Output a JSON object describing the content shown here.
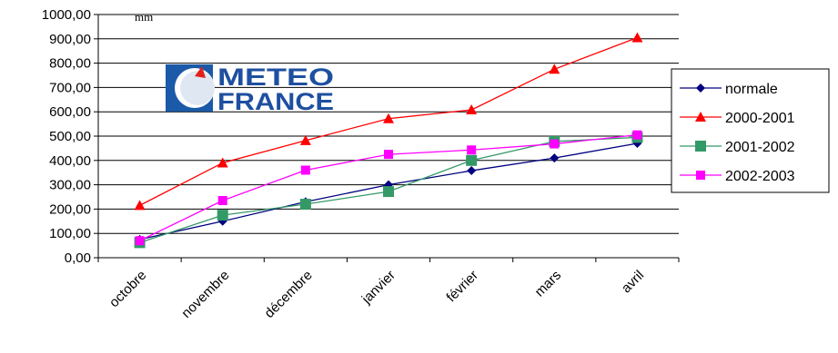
{
  "chart_data": {
    "type": "line",
    "title": "",
    "unit_label": "mm",
    "xlabel": "",
    "ylabel": "",
    "ylim": [
      0,
      1000
    ],
    "ytick_labels": [
      "0,00",
      "100,00",
      "200,00",
      "300,00",
      "400,00",
      "500,00",
      "600,00",
      "700,00",
      "800,00",
      "900,00",
      "1000,00"
    ],
    "categories": [
      "octobre",
      "novembre",
      "décembre",
      "janvier",
      "février",
      "mars",
      "avril"
    ],
    "grid": true,
    "legend_placement": "right",
    "series": [
      {
        "name": "normale",
        "color": "#000080",
        "marker": "diamond",
        "values": [
          75,
          150,
          230,
          300,
          358,
          410,
          470
        ]
      },
      {
        "name": "2000-2001",
        "color": "#ff0000",
        "marker": "triangle",
        "values": [
          215,
          390,
          482,
          572,
          608,
          775,
          905
        ]
      },
      {
        "name": "2001-2002",
        "color": "#339966",
        "marker": "square",
        "values": [
          62,
          175,
          220,
          272,
          400,
          478,
          495
        ]
      },
      {
        "name": "2002-2003",
        "color": "#ff00ff",
        "marker": "square",
        "values": [
          70,
          235,
          360,
          425,
          443,
          468,
          505
        ]
      }
    ]
  },
  "logo": {
    "line1": "METEO",
    "line2": "FRANCE",
    "bg_color": "#1a5aa8",
    "text_color": "#1e4fa0"
  }
}
